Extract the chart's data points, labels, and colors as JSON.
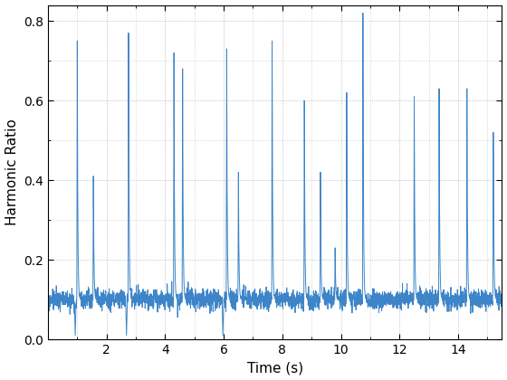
{
  "title": "",
  "xlabel": "Time (s)",
  "ylabel": "Harmonic Ratio",
  "line_color": "#3d85c8",
  "line_width": 0.7,
  "xlim": [
    0,
    15.5
  ],
  "ylim": [
    0,
    0.84
  ],
  "xticks": [
    2,
    4,
    6,
    8,
    10,
    12,
    14
  ],
  "yticks": [
    0,
    0.2,
    0.4,
    0.6,
    0.8
  ],
  "background_color": "#ffffff",
  "grid_color": "#b0b0b0",
  "spike_times": [
    1.0,
    1.55,
    2.75,
    4.3,
    4.6,
    6.1,
    6.5,
    7.65,
    8.75,
    9.3,
    9.8,
    10.2,
    10.75,
    12.5,
    13.35,
    14.3,
    15.2
  ],
  "spike_heights": [
    0.75,
    0.41,
    0.77,
    0.72,
    0.68,
    0.73,
    0.42,
    0.75,
    0.6,
    0.42,
    0.23,
    0.62,
    0.82,
    0.61,
    0.63,
    0.63,
    0.52
  ],
  "dip_times": [
    0.93,
    2.68,
    5.97,
    10.65
  ],
  "dip_values": [
    0.01,
    0.01,
    0.01,
    0.16
  ],
  "baseline": 0.1,
  "noise_std": 0.012,
  "fs": 200,
  "duration": 15.5
}
